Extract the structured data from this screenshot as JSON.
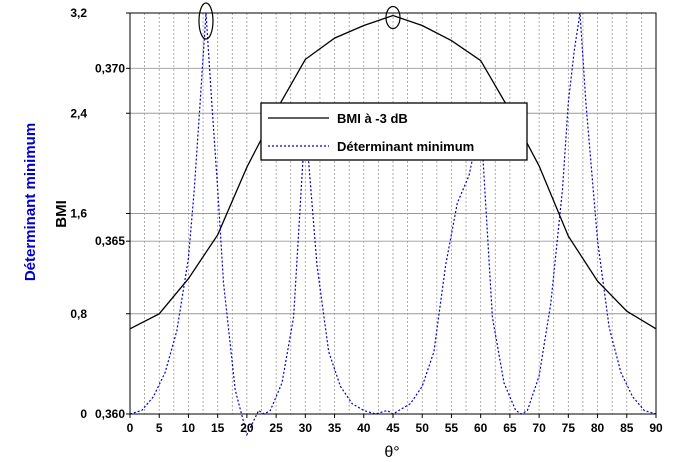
{
  "chart_data": {
    "type": "line",
    "xlabel": "θ°",
    "ylabel_inner": "BMI",
    "ylabel_outer": "Déterminant minimum",
    "xlim": [
      0,
      90
    ],
    "ylim_bmi": [
      0,
      3.2
    ],
    "ylim_det": [
      0.36,
      0.3716
    ],
    "x_ticks": [
      "0",
      "5",
      "10",
      "15",
      "20",
      "25",
      "30",
      "35",
      "40",
      "45",
      "50",
      "55",
      "60",
      "65",
      "70",
      "75",
      "80",
      "85",
      "90"
    ],
    "y_ticks_bmi": [
      "0",
      "0,8",
      "1,6",
      "2,4",
      "3,2"
    ],
    "y_ticks_det": [
      "0,360",
      "0,365",
      "0,370"
    ],
    "legend_position": "center",
    "grid": true,
    "series": [
      {
        "name": "BMI à -3 dB",
        "axis": "bmi",
        "style": "solid",
        "color": "#000000",
        "x": [
          0,
          5,
          10,
          15,
          20,
          25,
          30,
          35,
          40,
          45,
          50,
          55,
          60,
          65,
          70,
          75,
          80,
          85,
          90
        ],
        "y": [
          0.68,
          0.8,
          1.08,
          1.43,
          1.97,
          2.42,
          2.83,
          3.0,
          3.1,
          3.18,
          3.1,
          2.98,
          2.82,
          2.42,
          1.98,
          1.42,
          1.06,
          0.82,
          0.68
        ]
      },
      {
        "name": "Déterminant minimum",
        "axis": "det",
        "style": "dotted",
        "color": "#0000cc",
        "x": [
          0,
          2,
          4,
          6,
          8,
          10,
          11,
          12,
          13,
          14,
          15,
          16,
          18,
          20,
          22,
          23,
          24,
          26,
          28,
          30,
          32,
          34,
          36,
          38,
          40,
          42,
          44,
          45,
          46,
          48,
          50,
          52,
          54,
          56,
          58,
          60,
          62,
          64,
          66,
          67,
          68,
          70,
          72,
          74,
          75,
          76,
          77,
          78,
          80,
          82,
          84,
          86,
          88,
          90
        ],
        "y": [
          0.36,
          0.3601,
          0.3605,
          0.3612,
          0.3624,
          0.3645,
          0.3665,
          0.369,
          0.3716,
          0.369,
          0.3665,
          0.3638,
          0.3607,
          0.3594,
          0.3601,
          0.36,
          0.3601,
          0.3609,
          0.3628,
          0.3685,
          0.3643,
          0.3618,
          0.3608,
          0.3603,
          0.3601,
          0.36,
          0.3601,
          0.36,
          0.3601,
          0.3603,
          0.3608,
          0.3618,
          0.3643,
          0.3661,
          0.3669,
          0.3685,
          0.3628,
          0.3609,
          0.3601,
          0.36,
          0.3601,
          0.3611,
          0.3632,
          0.3665,
          0.369,
          0.3705,
          0.3716,
          0.369,
          0.365,
          0.3625,
          0.3612,
          0.3605,
          0.3601,
          0.36
        ]
      }
    ],
    "annotations": [
      {
        "type": "ellipse",
        "x": 13,
        "series": "Déterminant minimum"
      },
      {
        "type": "ellipse",
        "x": 45,
        "series": "BMI à -3 dB"
      }
    ]
  }
}
